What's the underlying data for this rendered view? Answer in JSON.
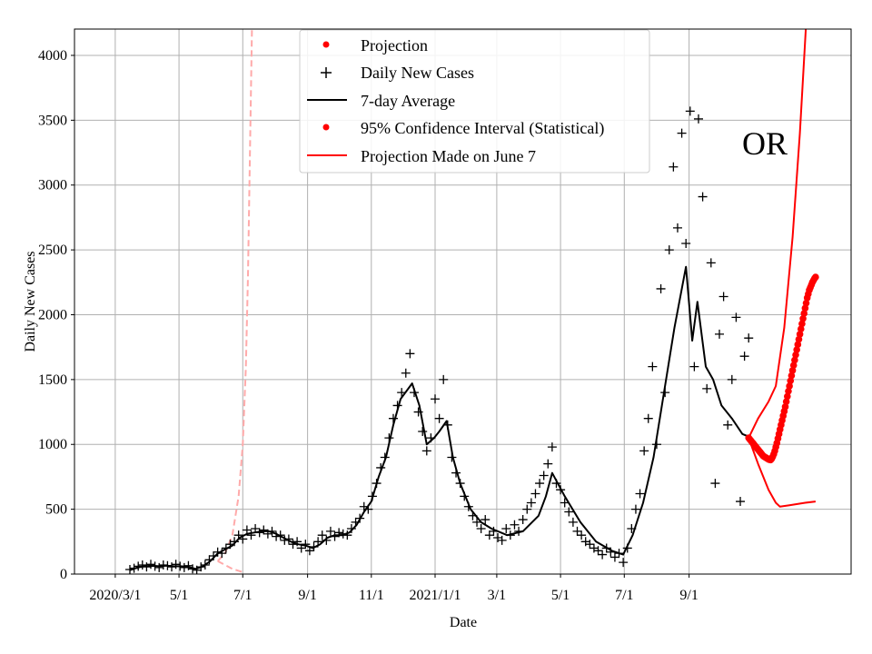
{
  "chart_data": {
    "type": "line",
    "title": "",
    "xlabel": "Date",
    "ylabel": "Daily New Cases",
    "x_unit": "days since 2020-03-01",
    "xlim": [
      -39,
      704
    ],
    "ylim": [
      0,
      4203
    ],
    "grid": true,
    "legend_position": "top-center",
    "x_ticks": [
      {
        "day": 0,
        "label": "2020/3/1"
      },
      {
        "day": 61,
        "label": "5/1"
      },
      {
        "day": 122,
        "label": "7/1"
      },
      {
        "day": 184,
        "label": "9/1"
      },
      {
        "day": 245,
        "label": "11/1"
      },
      {
        "day": 306,
        "label": "2021/1/1"
      },
      {
        "day": 365,
        "label": "3/1"
      },
      {
        "day": 426,
        "label": "5/1"
      },
      {
        "day": 487,
        "label": "7/1"
      },
      {
        "day": 549,
        "label": "9/1"
      }
    ],
    "y_ticks": [
      0,
      500,
      1000,
      1500,
      2000,
      2500,
      3000,
      3500,
      4000
    ],
    "legend": [
      {
        "label": "Projection",
        "marker": "dot",
        "color": "#ff0000"
      },
      {
        "label": "Daily New Cases",
        "marker": "plus",
        "color": "#000000"
      },
      {
        "label": "7-day Average",
        "marker": "line",
        "color": "#000000"
      },
      {
        "label": "95% Confidence Interval (Statistical)",
        "marker": "dot",
        "color": "#ff0000"
      },
      {
        "label": "Projection Made on June 7",
        "marker": "line",
        "color": "#ff0000"
      }
    ],
    "annotation": "OR",
    "series": {
      "daily_cases": {
        "name": "Daily New Cases",
        "color": "#000000",
        "start_day": 14,
        "step_days": 4,
        "values": [
          35,
          45,
          60,
          70,
          55,
          75,
          60,
          50,
          70,
          65,
          55,
          75,
          60,
          50,
          65,
          40,
          30,
          55,
          70,
          110,
          140,
          170,
          160,
          200,
          230,
          250,
          300,
          270,
          340,
          300,
          350,
          320,
          340,
          310,
          330,
          290,
          300,
          260,
          270,
          230,
          250,
          200,
          230,
          180,
          210,
          250,
          300,
          260,
          330,
          290,
          320,
          310,
          300,
          350,
          400,
          430,
          520,
          500,
          600,
          700,
          820,
          900,
          1050,
          1200,
          1300,
          1400,
          1550,
          1700,
          1400,
          1250,
          1100,
          950,
          1050,
          1350,
          1200,
          1500,
          1150,
          900,
          780,
          700,
          600,
          520,
          450,
          400,
          350,
          420,
          300,
          330,
          280,
          260,
          350,
          300,
          380,
          330,
          420,
          500,
          550,
          620,
          700,
          760,
          850,
          980,
          700,
          650,
          550,
          480,
          400,
          330,
          300,
          250,
          230,
          200,
          180,
          150,
          200,
          170,
          130,
          160,
          90,
          200,
          350,
          500,
          620,
          950,
          1200,
          1600,
          1000,
          2200,
          1400,
          2500,
          3140,
          2670,
          3400,
          2550,
          3570,
          1600,
          3510,
          2910,
          1430,
          2400,
          700,
          1850,
          2140,
          1150,
          1500,
          1980,
          560,
          1680,
          1820
        ]
      },
      "seven_day_average": {
        "name": "7-day Average",
        "color": "#000000",
        "points": [
          [
            14,
            30
          ],
          [
            21,
            50
          ],
          [
            28,
            60
          ],
          [
            35,
            65
          ],
          [
            42,
            60
          ],
          [
            49,
            65
          ],
          [
            56,
            60
          ],
          [
            63,
            60
          ],
          [
            70,
            55
          ],
          [
            77,
            40
          ],
          [
            84,
            60
          ],
          [
            91,
            100
          ],
          [
            98,
            160
          ],
          [
            105,
            190
          ],
          [
            112,
            220
          ],
          [
            119,
            280
          ],
          [
            126,
            310
          ],
          [
            133,
            320
          ],
          [
            140,
            330
          ],
          [
            147,
            330
          ],
          [
            154,
            310
          ],
          [
            161,
            280
          ],
          [
            168,
            250
          ],
          [
            175,
            230
          ],
          [
            182,
            220
          ],
          [
            189,
            200
          ],
          [
            196,
            230
          ],
          [
            203,
            280
          ],
          [
            210,
            300
          ],
          [
            217,
            300
          ],
          [
            224,
            320
          ],
          [
            231,
            380
          ],
          [
            238,
            480
          ],
          [
            245,
            560
          ],
          [
            252,
            750
          ],
          [
            259,
            900
          ],
          [
            266,
            1150
          ],
          [
            273,
            1350
          ],
          [
            284,
            1470
          ],
          [
            291,
            1300
          ],
          [
            298,
            1000
          ],
          [
            305,
            1050
          ],
          [
            310,
            1100
          ],
          [
            317,
            1180
          ],
          [
            323,
            900
          ],
          [
            330,
            700
          ],
          [
            340,
            500
          ],
          [
            350,
            400
          ],
          [
            360,
            350
          ],
          [
            375,
            300
          ],
          [
            390,
            330
          ],
          [
            405,
            450
          ],
          [
            412,
            600
          ],
          [
            418,
            780
          ],
          [
            430,
            600
          ],
          [
            445,
            400
          ],
          [
            460,
            250
          ],
          [
            475,
            180
          ],
          [
            486,
            150
          ],
          [
            495,
            300
          ],
          [
            505,
            550
          ],
          [
            515,
            900
          ],
          [
            525,
            1400
          ],
          [
            535,
            1900
          ],
          [
            546,
            2370
          ],
          [
            552,
            1800
          ],
          [
            557,
            2100
          ],
          [
            565,
            1600
          ],
          [
            572,
            1500
          ],
          [
            580,
            1300
          ],
          [
            590,
            1200
          ],
          [
            600,
            1080
          ],
          [
            606,
            1060
          ]
        ]
      },
      "projection": {
        "name": "Projection",
        "color": "#ff0000",
        "start_day": 606,
        "step_days": 1,
        "values": [
          1050,
          1040,
          1030,
          1020,
          1010,
          1000,
          990,
          980,
          970,
          960,
          950,
          940,
          930,
          920,
          910,
          905,
          900,
          895,
          890,
          885,
          882,
          880,
          890,
          905,
          925,
          950,
          980,
          1010,
          1045,
          1080,
          1115,
          1150,
          1185,
          1220,
          1255,
          1290,
          1330,
          1370,
          1410,
          1450,
          1490,
          1530,
          1570,
          1610,
          1650,
          1690,
          1730,
          1770,
          1810,
          1850,
          1890,
          1930,
          1970,
          2010,
          2050,
          2090,
          2130,
          2160,
          2190,
          2210,
          2230,
          2250,
          2265,
          2280,
          2290
        ]
      },
      "ci_upper": {
        "name": "95% Confidence Interval (Statistical)",
        "color": "#ff0000",
        "points": [
          [
            606,
            1050
          ],
          [
            615,
            1200
          ],
          [
            625,
            1330
          ],
          [
            632,
            1450
          ],
          [
            640,
            1900
          ],
          [
            648,
            2600
          ],
          [
            655,
            3400
          ],
          [
            661,
            4250
          ]
        ]
      },
      "ci_lower": {
        "name": "95% Confidence Interval (Statistical)",
        "color": "#ff0000",
        "points": [
          [
            606,
            1050
          ],
          [
            615,
            850
          ],
          [
            625,
            650
          ],
          [
            632,
            550
          ],
          [
            636,
            520
          ],
          [
            645,
            530
          ],
          [
            660,
            550
          ],
          [
            670,
            560
          ]
        ]
      },
      "june7_upper": {
        "name": "Projection Made on June 7",
        "color": "#ffaaaa",
        "points": [
          [
            98,
            100
          ],
          [
            105,
            160
          ],
          [
            112,
            300
          ],
          [
            118,
            600
          ],
          [
            122,
            1000
          ],
          [
            125,
            1600
          ],
          [
            127,
            2300
          ],
          [
            129,
            3300
          ],
          [
            131,
            4300
          ]
        ]
      },
      "june7_lower": {
        "name": "Projection Made on June 7",
        "color": "#ffaaaa",
        "points": [
          [
            98,
            100
          ],
          [
            105,
            70
          ],
          [
            112,
            40
          ],
          [
            118,
            25
          ],
          [
            122,
            15
          ]
        ]
      }
    }
  }
}
